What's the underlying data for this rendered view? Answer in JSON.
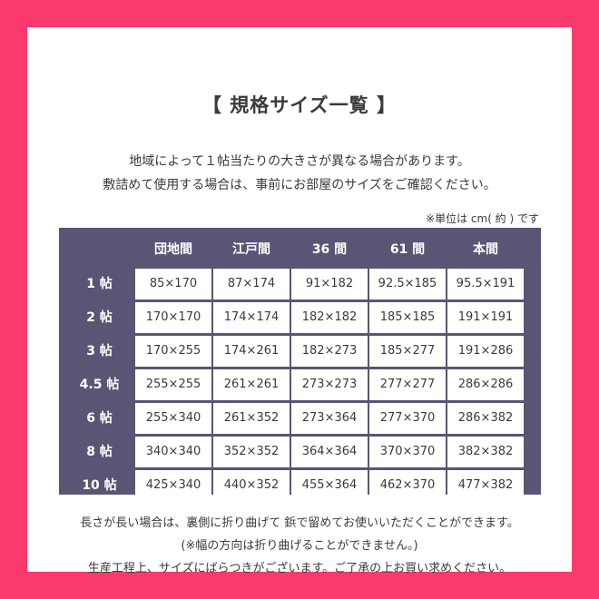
{
  "title": "【 規格サイズ一覧 】",
  "intro": [
    "地域によって１帖当たりの大きさが異なる場合があります。",
    "敷詰めて使用する場合は、事前にお部屋のサイズをご確認ください。"
  ],
  "unit_note": "※単位は cm( 約 ) です",
  "table": {
    "columns": [
      "団地間",
      "江戸間",
      "36 間",
      "61 間",
      "本間"
    ],
    "rows": [
      {
        "label": "1 帖",
        "values": [
          "85×170",
          "87×174",
          "91×182",
          "92.5×185",
          "95.5×191"
        ]
      },
      {
        "label": "2 帖",
        "values": [
          "170×170",
          "174×174",
          "182×182",
          "185×185",
          "191×191"
        ]
      },
      {
        "label": "3 帖",
        "values": [
          "170×255",
          "174×261",
          "182×273",
          "185×277",
          "191×286"
        ]
      },
      {
        "label": "4.5 帖",
        "values": [
          "255×255",
          "261×261",
          "273×273",
          "277×277",
          "286×286"
        ]
      },
      {
        "label": "6 帖",
        "values": [
          "255×340",
          "261×352",
          "273×364",
          "277×370",
          "286×382"
        ]
      },
      {
        "label": "8 帖",
        "values": [
          "340×340",
          "352×352",
          "364×364",
          "370×370",
          "382×382"
        ]
      },
      {
        "label": "10 帖",
        "values": [
          "425×340",
          "440×352",
          "455×364",
          "462×370",
          "477×382"
        ]
      }
    ]
  },
  "footer": [
    "長さが長い場合は、裏側に折り曲げて 鋲で留めてお使いいただくことができます。",
    "(※幅の方向は折り曲げることができません。)",
    "生産工程上、サイズにばらつきがございます。ご了承の上お買い求めください。"
  ],
  "colors": {
    "frame": "#fa3a6e",
    "table_header": "#5a5575"
  }
}
